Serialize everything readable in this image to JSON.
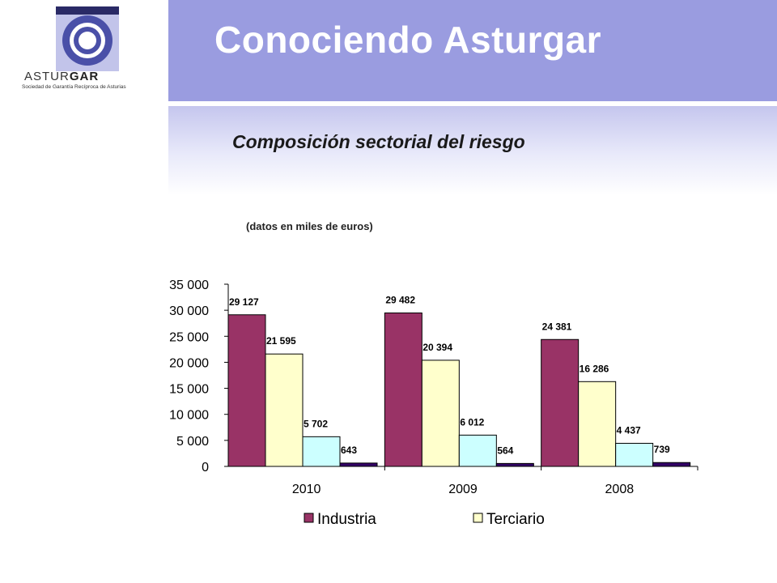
{
  "logo": {
    "name_part1": "ASTUR",
    "name_part2": "GAR",
    "tagline": "Sociedad de Garantía Recíproca de Asturias"
  },
  "header": {
    "title": "Conociendo Asturgar",
    "subtitle": "Composición sectorial del riesgo"
  },
  "note": "(datos en miles de euros)",
  "colors": {
    "title_band": "#9a9ce0",
    "industria": "#993366",
    "terciario": "#ffffcc",
    "series3": "#ccffff",
    "series4": "#330066"
  },
  "chart_data": {
    "type": "bar",
    "categories": [
      "2010",
      "2009",
      "2008"
    ],
    "series": [
      {
        "name": "Industria",
        "values": [
          29127,
          29482,
          24381
        ],
        "labels": [
          "29 127",
          "29 482",
          "24 381"
        ],
        "color": "#993366"
      },
      {
        "name": "Terciario",
        "values": [
          21595,
          20394,
          16286
        ],
        "labels": [
          "21 595",
          "20 394",
          "16 286"
        ],
        "color": "#ffffcc"
      },
      {
        "values": [
          5702,
          6012,
          4437
        ],
        "labels": [
          "5 702",
          "6 012",
          "4 437"
        ],
        "color": "#ccffff"
      },
      {
        "values": [
          643,
          564,
          739
        ],
        "labels": [
          "643",
          "564",
          "739"
        ],
        "color": "#330066"
      }
    ],
    "yticks": [
      0,
      5000,
      10000,
      15000,
      20000,
      25000,
      30000,
      35000
    ],
    "ytick_labels": [
      "0",
      "5 000",
      "10 000",
      "15 000",
      "20 000",
      "25 000",
      "30 000",
      "35 000"
    ],
    "ylim": [
      0,
      35000
    ],
    "legend": [
      "Industria",
      "Terciario"
    ],
    "legend_position": "bottom",
    "grid": false
  }
}
